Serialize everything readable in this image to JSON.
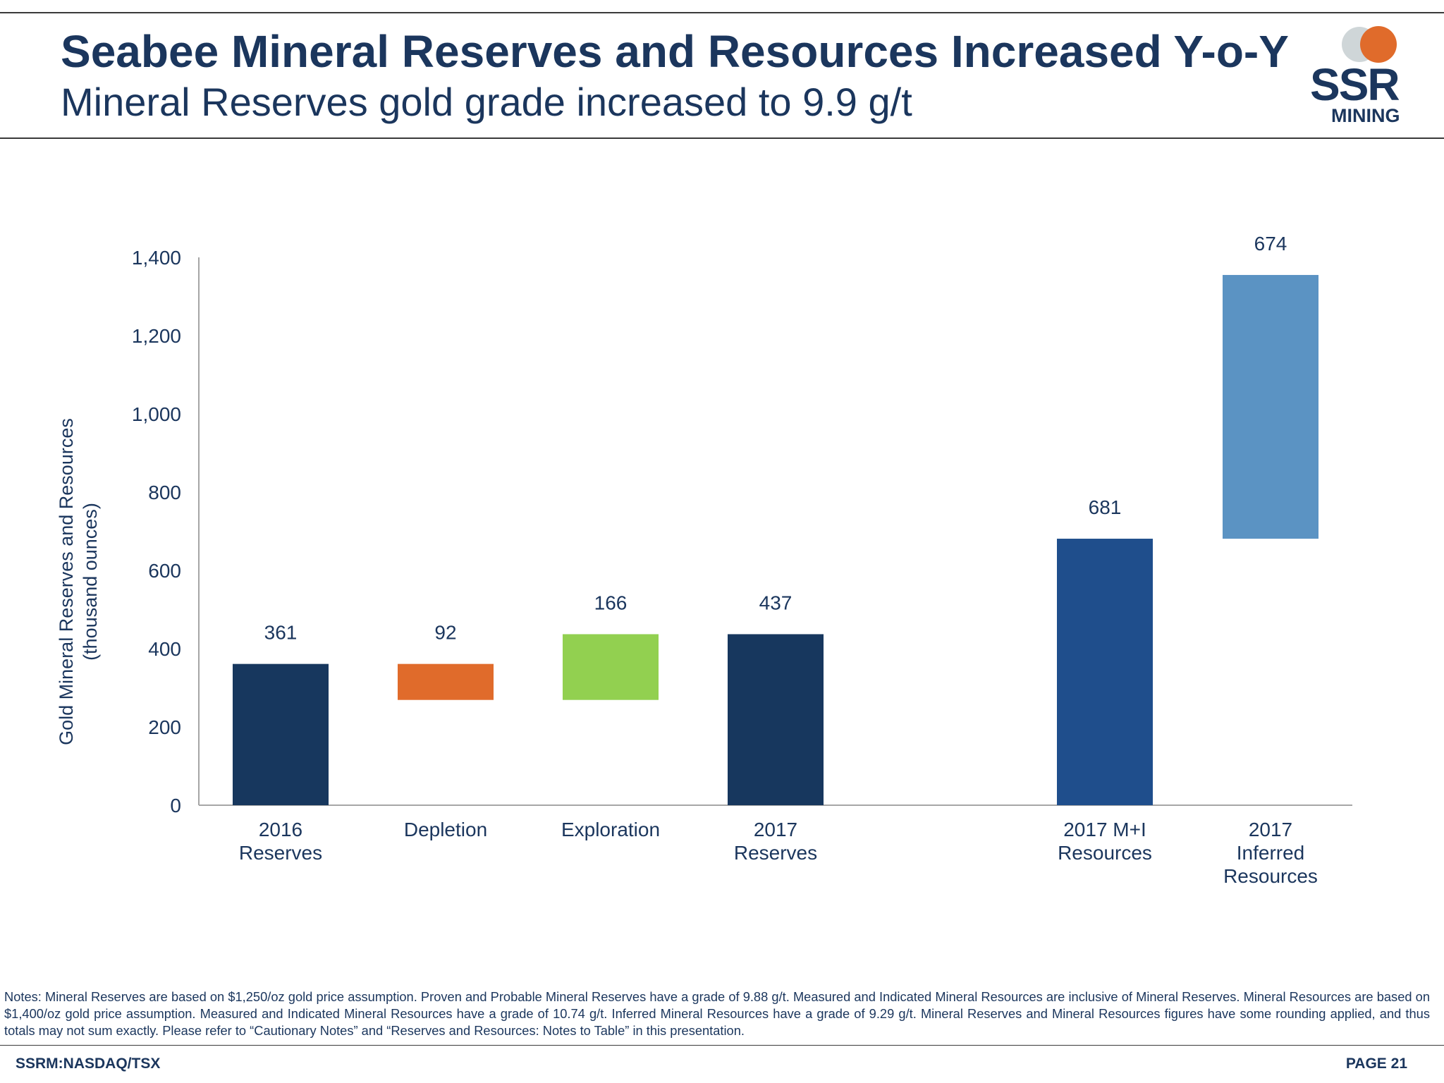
{
  "header": {
    "title": "Seabee Mineral Reserves and Resources Increased Y-o-Y",
    "subtitle": "Mineral Reserves gold grade increased to 9.9 g/t",
    "logo": {
      "text": "SSR",
      "sub": "MINING",
      "colors": {
        "orange": "#e06b2b",
        "grey": "#cfd6d8",
        "navy": "#1b365d"
      }
    }
  },
  "chart_data": {
    "type": "bar",
    "subtype": "waterfall",
    "categories": [
      [
        "2016",
        "Reserves"
      ],
      [
        "Depletion"
      ],
      [
        "Exploration"
      ],
      [
        "2017",
        "Reserves"
      ],
      [
        "2017 M+I",
        "Resources"
      ],
      [
        "2017",
        "Inferred",
        "Resources"
      ]
    ],
    "values": [
      361,
      92,
      166,
      437,
      681,
      674
    ],
    "bar_ranges": [
      [
        0,
        361
      ],
      [
        269,
        361
      ],
      [
        269,
        437
      ],
      [
        0,
        437
      ],
      [
        0,
        681
      ],
      [
        681,
        1355
      ]
    ],
    "data_labels": [
      "361",
      "92",
      "166",
      "437",
      "681",
      "674"
    ],
    "colors": [
      "#17375e",
      "#e06b2b",
      "#92d050",
      "#17375e",
      "#1f4e8c",
      "#5b93c3"
    ],
    "ylabel": [
      "Gold Mineral Reserves  and Resources",
      "(thousand ounces)"
    ],
    "ylim": [
      0,
      1400
    ],
    "yticks": [
      0,
      200,
      400,
      600,
      800,
      1000,
      1200,
      1400
    ],
    "ytick_labels": [
      "0",
      "200",
      "400",
      "600",
      "800",
      "1,000",
      "1,200",
      "1,400"
    ],
    "grid": false,
    "legend": "none"
  },
  "notes": "Notes: Mineral Reserves are based on $1,250/oz gold price assumption. Proven and Probable Mineral Reserves have a grade of 9.88 g/t. Measured and Indicated Mineral Resources are inclusive of Mineral Reserves.  Mineral Resources are based on $1,400/oz gold price assumption. Measured and Indicated Mineral Resources have a grade of 10.74 g/t. Inferred Mineral Resources have a grade of 9.29 g/t. Mineral Reserves and Mineral Resources figures have some rounding applied, and thus totals may not sum exactly. Please refer to “Cautionary Notes” and “Reserves and Resources: Notes to Table” in this presentation.",
  "footer": {
    "ticker": "SSRM:NASDAQ/TSX",
    "page": "PAGE 21"
  }
}
